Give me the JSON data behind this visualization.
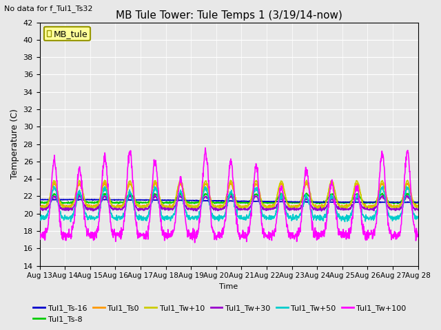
{
  "title": "MB Tule Tower: Tule Temps 1 (3/19/14-now)",
  "no_data_text": "No data for f_Tul1_Ts32",
  "xlabel": "Time",
  "ylabel": "Temperature (C)",
  "ylim": [
    14,
    42
  ],
  "x_tick_labels": [
    "Aug 13",
    "Aug 14",
    "Aug 15",
    "Aug 16",
    "Aug 17",
    "Aug 18",
    "Aug 19",
    "Aug 20",
    "Aug 21",
    "Aug 22",
    "Aug 23",
    "Aug 24",
    "Aug 25",
    "Aug 26",
    "Aug 27",
    "Aug 28"
  ],
  "yticks": [
    14,
    16,
    18,
    20,
    22,
    24,
    26,
    28,
    30,
    32,
    34,
    36,
    38,
    40,
    42
  ],
  "bg_color": "#e8e8e8",
  "legend_label": "MB_tule",
  "legend_bg": "#ffff99",
  "legend_border": "#999900",
  "lines": [
    {
      "label": "Tul1_Ts-16",
      "color": "#0000cc",
      "lw": 1.2
    },
    {
      "label": "Tul1_Ts-8",
      "color": "#00cc00",
      "lw": 1.2
    },
    {
      "label": "Tul1_Ts0",
      "color": "#ff9900",
      "lw": 1.2
    },
    {
      "label": "Tul1_Tw+10",
      "color": "#cccc00",
      "lw": 1.2
    },
    {
      "label": "Tul1_Tw+30",
      "color": "#9900cc",
      "lw": 1.2
    },
    {
      "label": "Tul1_Tw+50",
      "color": "#00cccc",
      "lw": 1.2
    },
    {
      "label": "Tul1_Tw+100",
      "color": "#ff00ff",
      "lw": 1.2
    }
  ]
}
